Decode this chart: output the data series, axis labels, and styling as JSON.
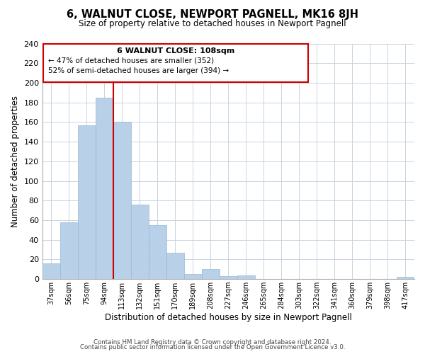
{
  "title": "6, WALNUT CLOSE, NEWPORT PAGNELL, MK16 8JH",
  "subtitle": "Size of property relative to detached houses in Newport Pagnell",
  "xlabel": "Distribution of detached houses by size in Newport Pagnell",
  "ylabel": "Number of detached properties",
  "bar_color": "#b8d0e8",
  "bar_edge_color": "#9ab8d8",
  "vline_color": "#cc0000",
  "categories": [
    "37sqm",
    "56sqm",
    "75sqm",
    "94sqm",
    "113sqm",
    "132sqm",
    "151sqm",
    "170sqm",
    "189sqm",
    "208sqm",
    "227sqm",
    "246sqm",
    "265sqm",
    "284sqm",
    "303sqm",
    "322sqm",
    "341sqm",
    "360sqm",
    "379sqm",
    "398sqm",
    "417sqm"
  ],
  "values": [
    16,
    58,
    157,
    185,
    160,
    76,
    55,
    27,
    5,
    10,
    3,
    4,
    0,
    0,
    0,
    0,
    0,
    0,
    0,
    0,
    2
  ],
  "ylim": [
    0,
    240
  ],
  "yticks": [
    0,
    20,
    40,
    60,
    80,
    100,
    120,
    140,
    160,
    180,
    200,
    220,
    240
  ],
  "annotation_title": "6 WALNUT CLOSE: 108sqm",
  "annotation_line1": "← 47% of detached houses are smaller (352)",
  "annotation_line2": "52% of semi-detached houses are larger (394) →",
  "footer1": "Contains HM Land Registry data © Crown copyright and database right 2024.",
  "footer2": "Contains public sector information licensed under the Open Government Licence v3.0.",
  "background_color": "#ffffff",
  "grid_color": "#c8d4e0"
}
